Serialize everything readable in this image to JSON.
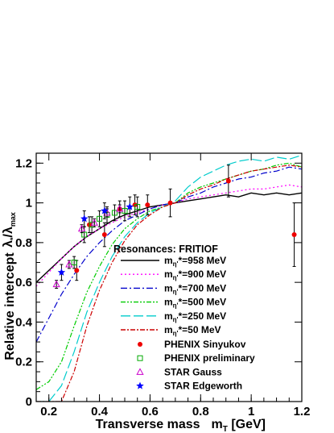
{
  "chart_data": {
    "type": "line",
    "xlabel": "Transverse mass",
    "xlabel_unit": "m",
    "xlabel_unit_sub": "T",
    "xlabel_unit_suffix": " [GeV]",
    "ylabel": "Relative intercept",
    "ylabel2": "λ",
    "ylabel2_sub": "*",
    "ylabel2_mid": "/λ",
    "ylabel2_sub2": "max",
    "xlim": [
      0.15,
      1.2
    ],
    "ylim": [
      0,
      1.25
    ],
    "xticks": [
      "0.2",
      "0.4",
      "0.6",
      "0.8",
      "1",
      "1.2"
    ],
    "xtick_values": [
      0.2,
      0.4,
      0.6,
      0.8,
      1.0,
      1.2
    ],
    "yticks": [
      "0",
      "0.2",
      "0.4",
      "0.6",
      "0.8",
      "1",
      "1.2"
    ],
    "ytick_values": [
      0,
      0.2,
      0.4,
      0.6,
      0.8,
      1.0,
      1.2
    ],
    "legend_title": "Resonances: FRITIOF",
    "series": [
      {
        "label_main": "m",
        "label_sub": "η'",
        "label_rest": "*=958 MeV",
        "color": "#000000",
        "dash": "",
        "x": [
          0.15,
          0.2,
          0.25,
          0.3,
          0.35,
          0.4,
          0.45,
          0.5,
          0.55,
          0.6,
          0.65,
          0.7,
          0.75,
          0.8,
          0.85,
          0.9,
          0.95,
          1.0,
          1.05,
          1.1,
          1.15,
          1.2
        ],
        "y": [
          0.6,
          0.66,
          0.72,
          0.78,
          0.83,
          0.87,
          0.91,
          0.94,
          0.96,
          0.98,
          0.99,
          1.0,
          1.01,
          1.02,
          1.03,
          1.04,
          1.03,
          1.05,
          1.04,
          1.05,
          1.04,
          1.05
        ]
      },
      {
        "label_main": "m",
        "label_sub": "η'",
        "label_rest": "*=900 MeV",
        "color": "#ff00ff",
        "dash": "2,3",
        "x": [
          0.15,
          0.2,
          0.25,
          0.3,
          0.35,
          0.4,
          0.45,
          0.5,
          0.55,
          0.6,
          0.65,
          0.7,
          0.75,
          0.8,
          0.85,
          0.9,
          0.95,
          1.0,
          1.05,
          1.1,
          1.15,
          1.2
        ],
        "y": [
          0.58,
          0.65,
          0.72,
          0.78,
          0.83,
          0.87,
          0.9,
          0.93,
          0.95,
          0.97,
          0.99,
          1.0,
          1.02,
          1.03,
          1.04,
          1.05,
          1.06,
          1.07,
          1.07,
          1.08,
          1.09,
          1.08
        ]
      },
      {
        "label_main": "m",
        "label_sub": "η'",
        "label_rest": "*=700 MeV",
        "color": "#0000cc",
        "dash": "8,3,2,3",
        "x": [
          0.15,
          0.2,
          0.25,
          0.3,
          0.35,
          0.4,
          0.45,
          0.5,
          0.55,
          0.6,
          0.65,
          0.7,
          0.75,
          0.8,
          0.85,
          0.9,
          0.95,
          1.0,
          1.05,
          1.1,
          1.15,
          1.2
        ],
        "y": [
          0.3,
          0.42,
          0.54,
          0.64,
          0.73,
          0.8,
          0.86,
          0.91,
          0.94,
          0.97,
          0.99,
          1.0,
          1.03,
          1.05,
          1.08,
          1.1,
          1.12,
          1.13,
          1.15,
          1.16,
          1.18,
          1.17
        ]
      },
      {
        "label_main": "m",
        "label_sub": "η'",
        "label_rest": "*=500 MeV",
        "color": "#00cc00",
        "dash": "6,2,2,2,2,2",
        "x": [
          0.15,
          0.2,
          0.25,
          0.3,
          0.35,
          0.4,
          0.45,
          0.5,
          0.55,
          0.6,
          0.65,
          0.7,
          0.75,
          0.8,
          0.85,
          0.9,
          0.95,
          1.0,
          1.05,
          1.1,
          1.15,
          1.2
        ],
        "y": [
          0.06,
          0.1,
          0.2,
          0.38,
          0.55,
          0.68,
          0.79,
          0.87,
          0.92,
          0.96,
          0.98,
          1.0,
          1.05,
          1.08,
          1.1,
          1.12,
          1.14,
          1.16,
          1.17,
          1.19,
          1.2,
          1.18
        ]
      },
      {
        "label_main": "m",
        "label_sub": "η'",
        "label_rest": "*=250 MeV",
        "color": "#00cccc",
        "dash": "12,4",
        "x": [
          0.15,
          0.2,
          0.25,
          0.3,
          0.35,
          0.4,
          0.45,
          0.5,
          0.55,
          0.6,
          0.65,
          0.7,
          0.75,
          0.8,
          0.85,
          0.9,
          0.95,
          1.0,
          1.05,
          1.1,
          1.15,
          1.2
        ],
        "y": [
          0.0,
          0.0,
          0.08,
          0.25,
          0.45,
          0.6,
          0.73,
          0.83,
          0.9,
          0.95,
          0.98,
          1.01,
          1.08,
          1.13,
          1.16,
          1.19,
          1.21,
          1.22,
          1.21,
          1.23,
          1.22,
          1.24
        ]
      },
      {
        "label_main": "m",
        "label_sub": "η'",
        "label_rest": "*=50 MeV",
        "color": "#cc0000",
        "dash": "6,2,2,2",
        "x": [
          0.15,
          0.2,
          0.25,
          0.3,
          0.35,
          0.4,
          0.45,
          0.5,
          0.55,
          0.6,
          0.65,
          0.7,
          0.75,
          0.8,
          0.85,
          0.9,
          0.95,
          1.0,
          1.05,
          1.1,
          1.15,
          1.2
        ],
        "y": [
          0.0,
          0.0,
          0.0,
          0.15,
          0.38,
          0.56,
          0.7,
          0.81,
          0.89,
          0.94,
          0.98,
          1.0,
          1.04,
          1.07,
          1.09,
          1.12,
          1.14,
          1.16,
          1.17,
          1.18,
          1.19,
          1.18
        ]
      }
    ],
    "points": [
      {
        "label": "PHENIX Sinyukov",
        "marker": "circle",
        "color": "#ee0000",
        "x": [
          0.31,
          0.36,
          0.42,
          0.48,
          0.54,
          0.59,
          0.68,
          0.91,
          1.17
        ],
        "y": [
          0.66,
          0.89,
          0.84,
          0.97,
          0.99,
          0.99,
          1.0,
          1.11,
          0.84
        ],
        "err": [
          0.05,
          0.04,
          0.06,
          0.04,
          0.05,
          0.05,
          0.07,
          0.08,
          0.16
        ]
      },
      {
        "label": "PHENIX preliminary",
        "marker": "square-open",
        "color": "#00aa00",
        "x": [
          0.3,
          0.34,
          0.37,
          0.4,
          0.43,
          0.46,
          0.5,
          0.55
        ],
        "y": [
          0.7,
          0.84,
          0.89,
          0.92,
          0.94,
          0.95,
          0.96,
          0.98
        ],
        "err": [
          0.03,
          0.04,
          0.04,
          0.04,
          0.04,
          0.04,
          0.05,
          0.05
        ]
      },
      {
        "label": "STAR Gauss",
        "marker": "triangle-open",
        "color": "#cc00cc",
        "x": [
          0.23,
          0.28,
          0.33,
          0.38,
          0.43,
          0.48
        ],
        "y": [
          0.59,
          0.69,
          0.87,
          0.9,
          0.95,
          0.97
        ],
        "err": [
          0.02,
          0.02,
          0.02,
          0.02,
          0.02,
          0.02
        ]
      },
      {
        "label": "STAR Edgeworth",
        "marker": "star",
        "color": "#0000ff",
        "x": [
          0.25,
          0.34,
          0.42,
          0.52
        ],
        "y": [
          0.65,
          0.92,
          0.96,
          0.98
        ],
        "err": [
          0.04,
          0.04,
          0.04,
          0.05
        ]
      }
    ]
  }
}
